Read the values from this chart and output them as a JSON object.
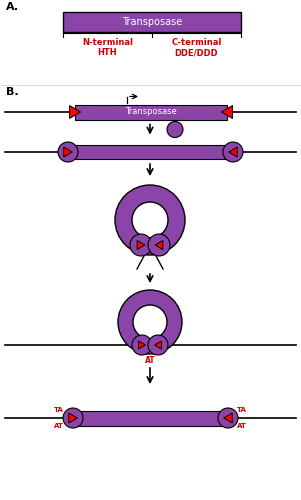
{
  "purple": "#8B44A8",
  "red": "#CC0000",
  "white": "#FFFFFF",
  "black": "#000000",
  "bg": "#FFFFFF",
  "label_A": "A.",
  "label_B": "B.",
  "transposase_label": "Transposase",
  "n_terminal_label": "N-terminal\nHTH",
  "c_terminal_label": "C-terminal\nDDE/DDD"
}
